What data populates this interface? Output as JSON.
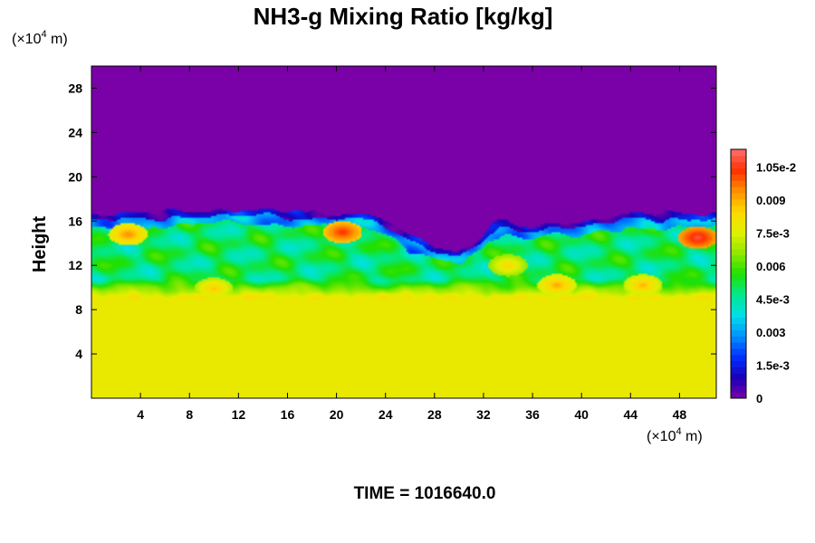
{
  "chart_data": {
    "type": "heatmap",
    "title": "NH3-g Mixing Ratio [kg/kg]",
    "ylabel": "Height",
    "x_unit": {
      "prefix": "(×10",
      "exp": "4",
      "suffix": " m)"
    },
    "y_unit": {
      "prefix": "(×10",
      "exp": "4",
      "suffix": " m)"
    },
    "xlim": [
      0,
      51
    ],
    "ylim": [
      0,
      30
    ],
    "x_ticks": [
      4,
      8,
      12,
      16,
      20,
      24,
      28,
      32,
      36,
      40,
      44,
      48
    ],
    "y_ticks": [
      4,
      8,
      12,
      16,
      20,
      24,
      28
    ],
    "colorbar": {
      "range": [
        0,
        0.0113
      ],
      "tick_values": [
        0,
        0.0015,
        0.003,
        0.0045,
        0.006,
        0.0075,
        0.009,
        0.0105
      ],
      "tick_labels": [
        "0",
        "1.5e-3",
        "0.003",
        "4.5e-3",
        "0.006",
        "7.5e-3",
        "0.009",
        "1.05e-2"
      ],
      "colors": [
        "#7a00a8",
        "#1a00b8",
        "#0030ff",
        "#0090ff",
        "#00e0e8",
        "#00e890",
        "#20e000",
        "#90e800",
        "#e0f000",
        "#ffd800",
        "#ff9000",
        "#ff3000",
        "#ff7070"
      ]
    },
    "field": {
      "background_value": 0,
      "lower_layer_value": 0.0078,
      "lower_layer_top": 9.5,
      "profile_top": [
        [
          0,
          16.5
        ],
        [
          3,
          16.6
        ],
        [
          6,
          16.8
        ],
        [
          9,
          17.0
        ],
        [
          12,
          17.0
        ],
        [
          15,
          16.9
        ],
        [
          18,
          16.8
        ],
        [
          21,
          16.7
        ],
        [
          23,
          16.4
        ],
        [
          24.5,
          16.0
        ],
        [
          26,
          14.5
        ],
        [
          28,
          13.8
        ],
        [
          30,
          13.3
        ],
        [
          31,
          13.8
        ],
        [
          32.5,
          15.5
        ],
        [
          34,
          16.0
        ],
        [
          36,
          15.5
        ],
        [
          38,
          16.0
        ],
        [
          40,
          15.8
        ],
        [
          42,
          16.3
        ],
        [
          44,
          16.6
        ],
        [
          46,
          16.6
        ],
        [
          48,
          16.7
        ],
        [
          51,
          16.8
        ]
      ],
      "blobs": [
        {
          "x": 20.5,
          "y": 15.0,
          "v": 0.0105
        },
        {
          "x": 49.5,
          "y": 14.5,
          "v": 0.011
        },
        {
          "x": 3,
          "y": 14.8,
          "v": 0.0095
        },
        {
          "x": 38,
          "y": 10.2,
          "v": 0.0092
        },
        {
          "x": 10,
          "y": 9.9,
          "v": 0.0088
        },
        {
          "x": 34,
          "y": 12.0,
          "v": 0.0085
        },
        {
          "x": 45,
          "y": 10.2,
          "v": 0.009
        }
      ]
    }
  },
  "footer": {
    "time_label": "TIME = 1016640.0"
  }
}
